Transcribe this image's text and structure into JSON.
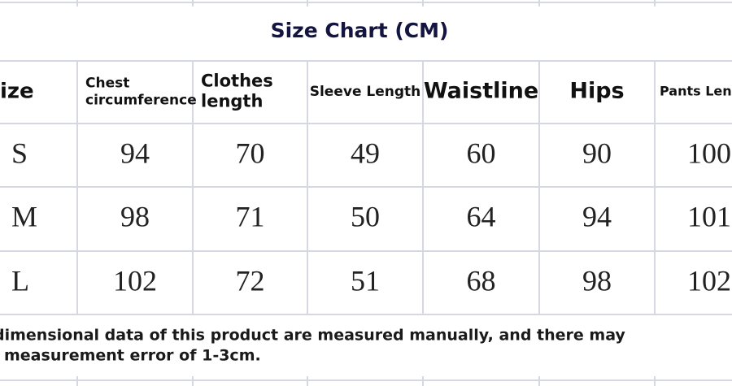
{
  "title": "Size Chart (CM)",
  "table": {
    "header": [
      [
        "ize"
      ],
      [
        "Chest",
        "circumference"
      ],
      [
        "Clothes",
        "length"
      ],
      [
        "Sleeve Length"
      ],
      [
        "Waistline"
      ],
      [
        "Hips"
      ],
      [
        "Pants Leng"
      ]
    ],
    "rows": [
      [
        "S",
        94,
        70,
        49,
        60,
        90,
        100
      ],
      [
        "M",
        98,
        71,
        50,
        64,
        94,
        101
      ],
      [
        "L",
        102,
        72,
        51,
        68,
        98,
        102
      ]
    ]
  },
  "note": [
    "dimensional data of this product are measured manually, and there may",
    "measurement error of 1-3cm."
  ]
}
